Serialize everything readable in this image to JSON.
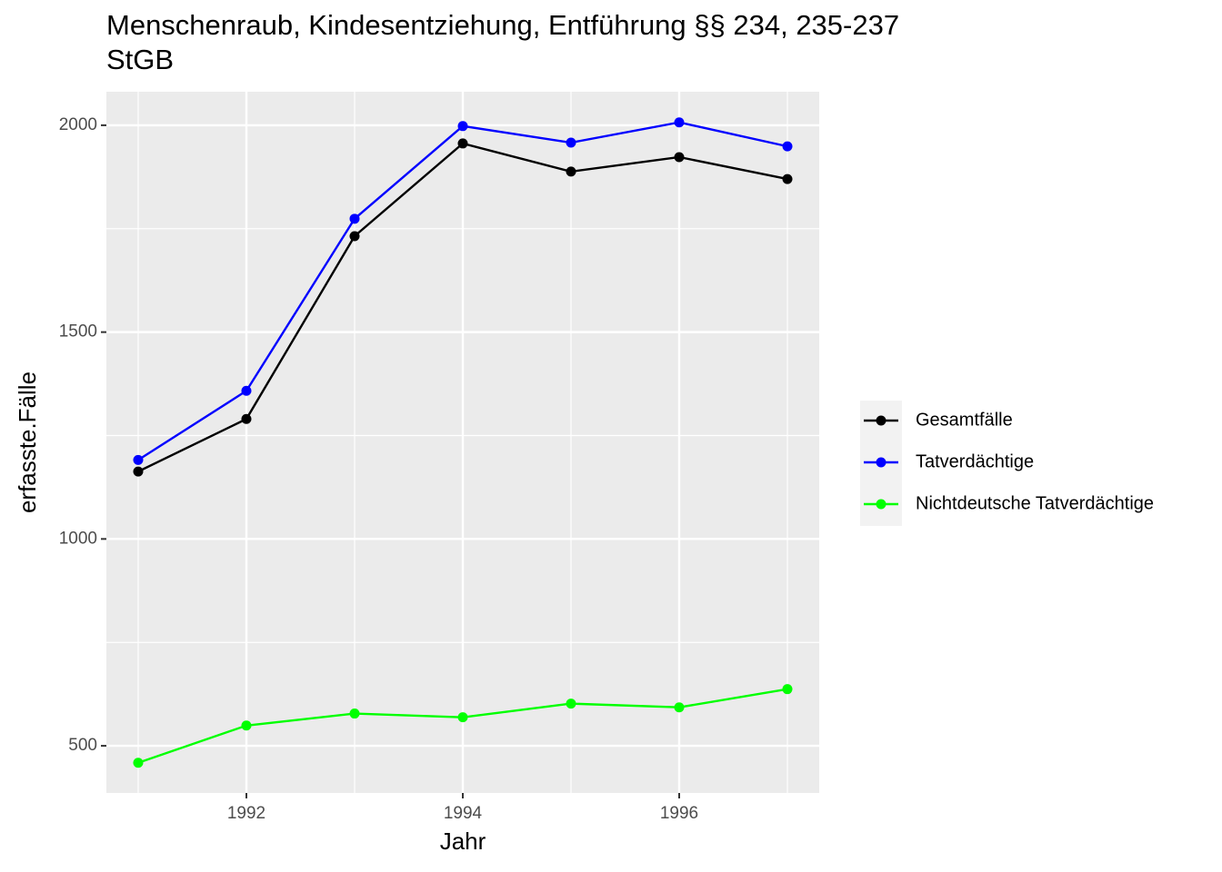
{
  "chart_data": {
    "type": "line",
    "title": [
      "Menschenraub, Kindesentziehung, Entführung §§ 234, 235-237",
      "StGB"
    ],
    "x_label": "Jahr",
    "y_label": "erfasste.Fälle",
    "x": [
      1991,
      1992,
      1993,
      1994,
      1995,
      1996,
      1997
    ],
    "series": [
      {
        "name": "Gesamtfälle",
        "color": "#000000",
        "values": [
          1163,
          1290,
          1732,
          1956,
          1888,
          1923,
          1870
        ]
      },
      {
        "name": "Tatverdächtige",
        "color": "#0000ff",
        "values": [
          1191,
          1358,
          1774,
          1998,
          1958,
          2007,
          1949
        ]
      },
      {
        "name": "Nichtdeutsche Tatverdächtige",
        "color": "#00ff00",
        "values": [
          459,
          549,
          578,
          569,
          602,
          593,
          637
        ]
      }
    ],
    "xlim": [
      1990.706,
      1997.294
    ],
    "xticks": [
      1992,
      1994,
      1996
    ],
    "xminor": [
      1991,
      1993,
      1995,
      1997
    ],
    "ylim": [
      386,
      2081
    ],
    "yticks": [
      500,
      1000,
      1500,
      2000
    ],
    "yminor": [
      750,
      1250,
      1750
    ],
    "grid": true,
    "legend": "right"
  }
}
